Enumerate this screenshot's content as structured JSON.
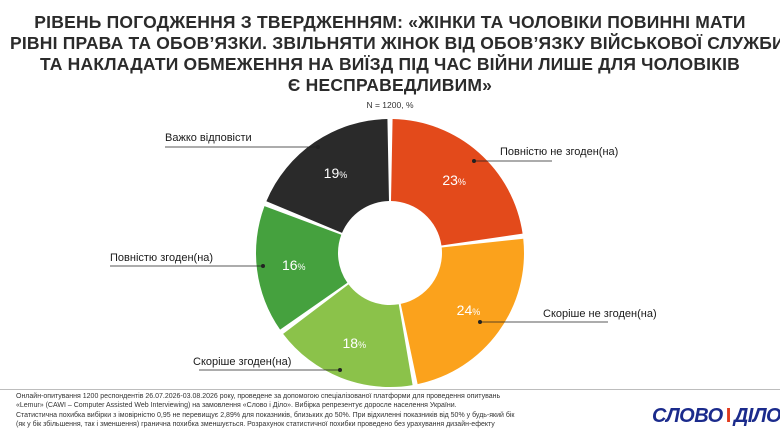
{
  "title_lines": [
    "РІВЕНЬ ПОГОДЖЕННЯ З ТВЕРДЖЕННЯМ: «ЖІНКИ ТА ЧОЛОВІКИ ПОВИННІ МАТИ",
    "РІВНІ ПРАВА ТА ОБОВ’ЯЗКИ. ЗВІЛЬНЯТИ ЖІНОК ВІД ОБОВ’ЯЗКУ ВІЙСЬКОВОЇ СЛУЖБИ",
    "ТА НАКЛАДАТИ ОБМЕЖЕННЯ НА ВИЇЗД ПІД ЧАС ВІЙНИ ЛИШЕ ДЛЯ ЧОЛОВІКІВ",
    "Є НЕСПРАВЕДЛИВИМ»"
  ],
  "subtitle": "N = 1200, %",
  "chart_data": {
    "type": "pie",
    "variant": "donut",
    "categories": [
      "Повністю не згоден(на)",
      "Скоріше не згоден(на)",
      "Скоріше згоден(на)",
      "Повністю згоден(на)",
      "Важко відповісти"
    ],
    "values": [
      23,
      24,
      18,
      16,
      19
    ],
    "value_labels": [
      "23",
      "24",
      "18",
      "16",
      "19"
    ],
    "unit": "%",
    "colors": [
      "#e34a1b",
      "#fba21c",
      "#8bc24a",
      "#45a13e",
      "#2a2a2a"
    ],
    "label_text_colors": [
      "#ffffff",
      "#ffffff",
      "#ffffff",
      "#ffffff",
      "#ffffff"
    ]
  },
  "footer": {
    "lines": [
      "Онлайн-опитування 1200 респондентів 26.07.2026-03.08.2026 року, проведене за допомогою спеціалізованої платформи для проведення опитувань",
      "«Lemur» (CAWI – Computer Assisted Web Interviewing) на замовлення «Слово і Діло». Вибірка репрезентує доросле населення України.",
      "Статистична похибка вибірки з імовірністю 0,95 не перевищує 2,89% для показників, близьких до 50%. При відхиленні показників від 50% у будь-який бік",
      "(як у бік збільшення, так і зменшення) гранична похибка зменшується. Розрахунок статистичної похибки проведено без урахування дизайн-ефекту"
    ]
  },
  "logo": {
    "left": "СЛОВО",
    "sep": "І",
    "right": "ДІЛО"
  },
  "colors": {
    "logo_blue": "#1b2b8c",
    "logo_red": "#e03a1e"
  }
}
